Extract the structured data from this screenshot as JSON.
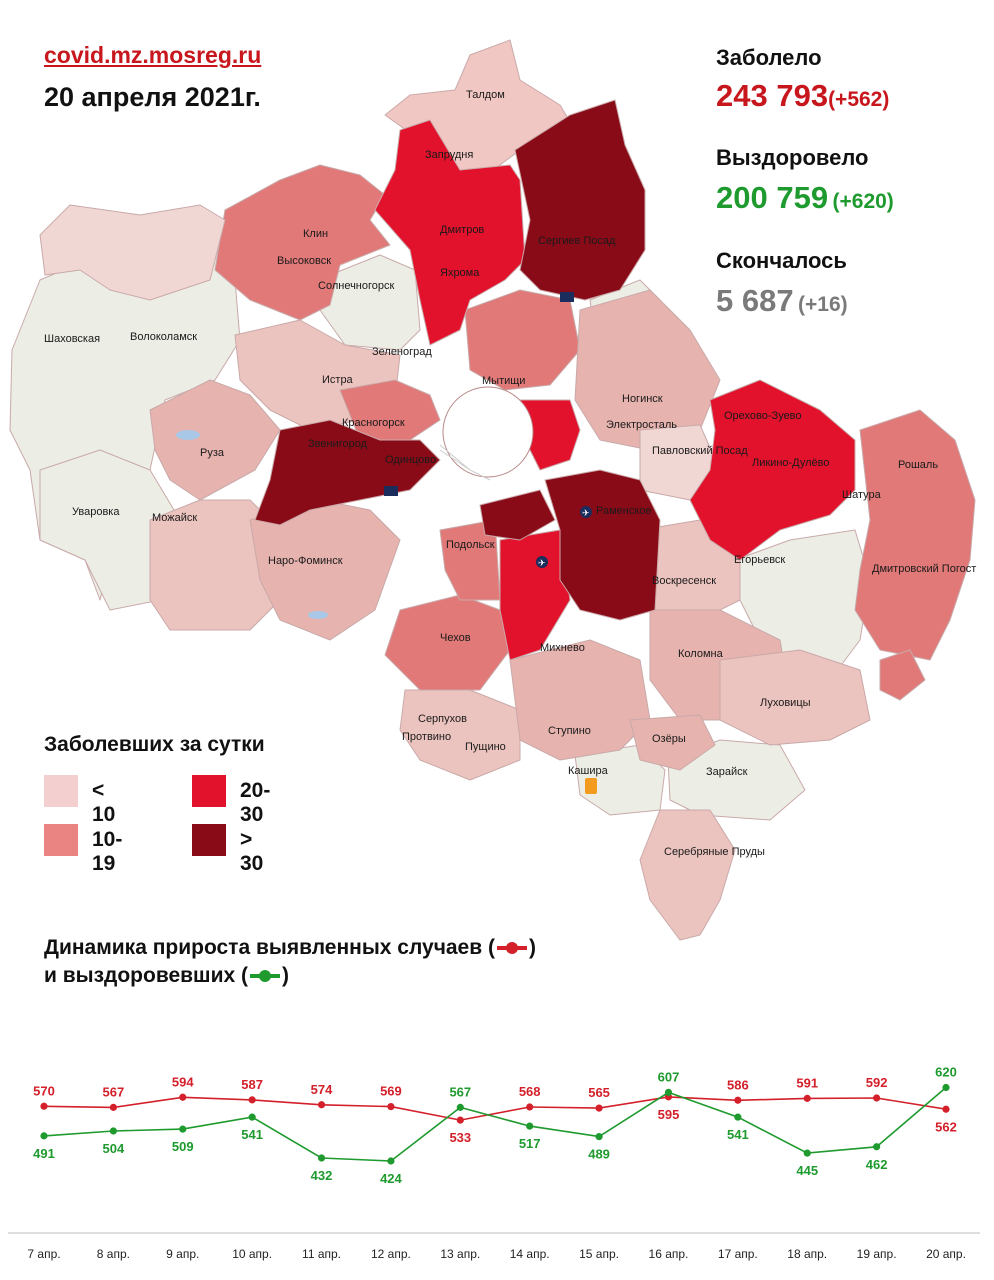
{
  "header": {
    "site": "covid.mz.mosreg.ru",
    "date": "20 апреля 2021г."
  },
  "stats": {
    "infected": {
      "label": "Заболело",
      "value": "243 793",
      "delta": "(+562)",
      "color": "#c8161d"
    },
    "recovered": {
      "label": "Выздоровело",
      "value": "200 759",
      "delta": "(+620)",
      "color": "#1e9a2e"
    },
    "died": {
      "label": "Скончалось",
      "value": "5 687",
      "delta": "(+16)",
      "color": "#7a7a7a"
    }
  },
  "legend": {
    "title": "Заболевших за сутки",
    "items": [
      {
        "label": "< 10",
        "color": "#f3cfcf"
      },
      {
        "label": "10-19",
        "color": "#e98482"
      },
      {
        "label": "20-30",
        "color": "#e2112c"
      },
      {
        "label": "> 30",
        "color": "#8a0b18"
      }
    ]
  },
  "map": {
    "towns": [
      "Талдом",
      "Запрудня",
      "Дмитров",
      "Яхрома",
      "Сергиев Посад",
      "Клин",
      "Высоковск",
      "Солнечногорск",
      "Шаховская",
      "Волоколамск",
      "Зеленоград",
      "Истра",
      "Мытищи",
      "Ногинск",
      "Электросталь",
      "Орехово-Зуево",
      "Красногорск",
      "Звенигород",
      "Одинцово",
      "Павловский Посад",
      "Ликино-Дулёво",
      "Рошаль",
      "Руза",
      "Шатура",
      "Уваровка",
      "Можайск",
      "Раменское",
      "Подольск",
      "Наро-Фоминск",
      "Егорьевск",
      "Воскресенск",
      "Дмитровский Погост",
      "Чехов",
      "Михнево",
      "Коломна",
      "Луховицы",
      "Серпухов",
      "Протвино",
      "Пущино",
      "Ступино",
      "Озёры",
      "Кашира",
      "Зарайск",
      "Серебряные Пруды"
    ]
  },
  "dynamics": {
    "title_line1": "Динамика прироста выявленных случаев (",
    "title_line2": "и выздоровевших (",
    "close_paren": ")"
  },
  "chart_data": {
    "type": "line",
    "categories": [
      "7 апр.",
      "8 апр.",
      "9 апр.",
      "10 апр.",
      "11 апр.",
      "12 апр.",
      "13 апр.",
      "14 апр.",
      "15 апр.",
      "16 апр.",
      "17 апр.",
      "18 апр.",
      "19 апр.",
      "20 апр."
    ],
    "series": [
      {
        "values": [
          570,
          567,
          594,
          587,
          574,
          569,
          533,
          568,
          565,
          595,
          586,
          591,
          592,
          562
        ],
        "color": "#d4202a"
      },
      {
        "values": [
          491,
          504,
          509,
          541,
          432,
          424,
          567,
          517,
          489,
          607,
          541,
          445,
          462,
          620
        ],
        "color": "#1e9a2e"
      }
    ],
    "ylim": [
      400,
      640
    ]
  }
}
